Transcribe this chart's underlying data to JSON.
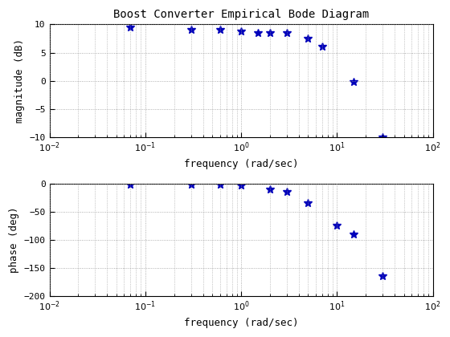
{
  "title": "Boost Converter Empirical Bode Diagram",
  "freq_mag": [
    0.07,
    0.3,
    0.6,
    1.0,
    1.5,
    2.0,
    3.0,
    5.0,
    7.0,
    15.0,
    30.0
  ],
  "magnitude": [
    9.5,
    9.0,
    9.0,
    8.8,
    8.5,
    8.5,
    8.5,
    7.5,
    6.0,
    -0.2,
    -10.0
  ],
  "freq_phase": [
    0.07,
    0.3,
    0.6,
    1.0,
    2.0,
    3.0,
    5.0,
    10.0,
    15.0,
    30.0
  ],
  "phase": [
    -2.0,
    -2.0,
    -2.5,
    -4.0,
    -10.0,
    -15.0,
    -35.0,
    -75.0,
    -90.0,
    -165.0
  ],
  "color": "#0000bb",
  "marker": "*",
  "markersize": 7,
  "mag_ylim": [
    -10,
    10
  ],
  "mag_yticks": [
    -10,
    -5,
    0,
    5,
    10
  ],
  "phase_ylim": [
    -200,
    0
  ],
  "phase_yticks": [
    -200,
    -150,
    -100,
    -50,
    0
  ],
  "xlim": [
    0.01,
    100
  ],
  "xlabel": "frequency (rad/sec)",
  "mag_ylabel": "magnitude (dB)",
  "phase_ylabel": "phase (deg)",
  "bg_color": "#ffffff",
  "grid_color": "#999999",
  "title_fontsize": 10,
  "label_fontsize": 9,
  "tick_fontsize": 8
}
